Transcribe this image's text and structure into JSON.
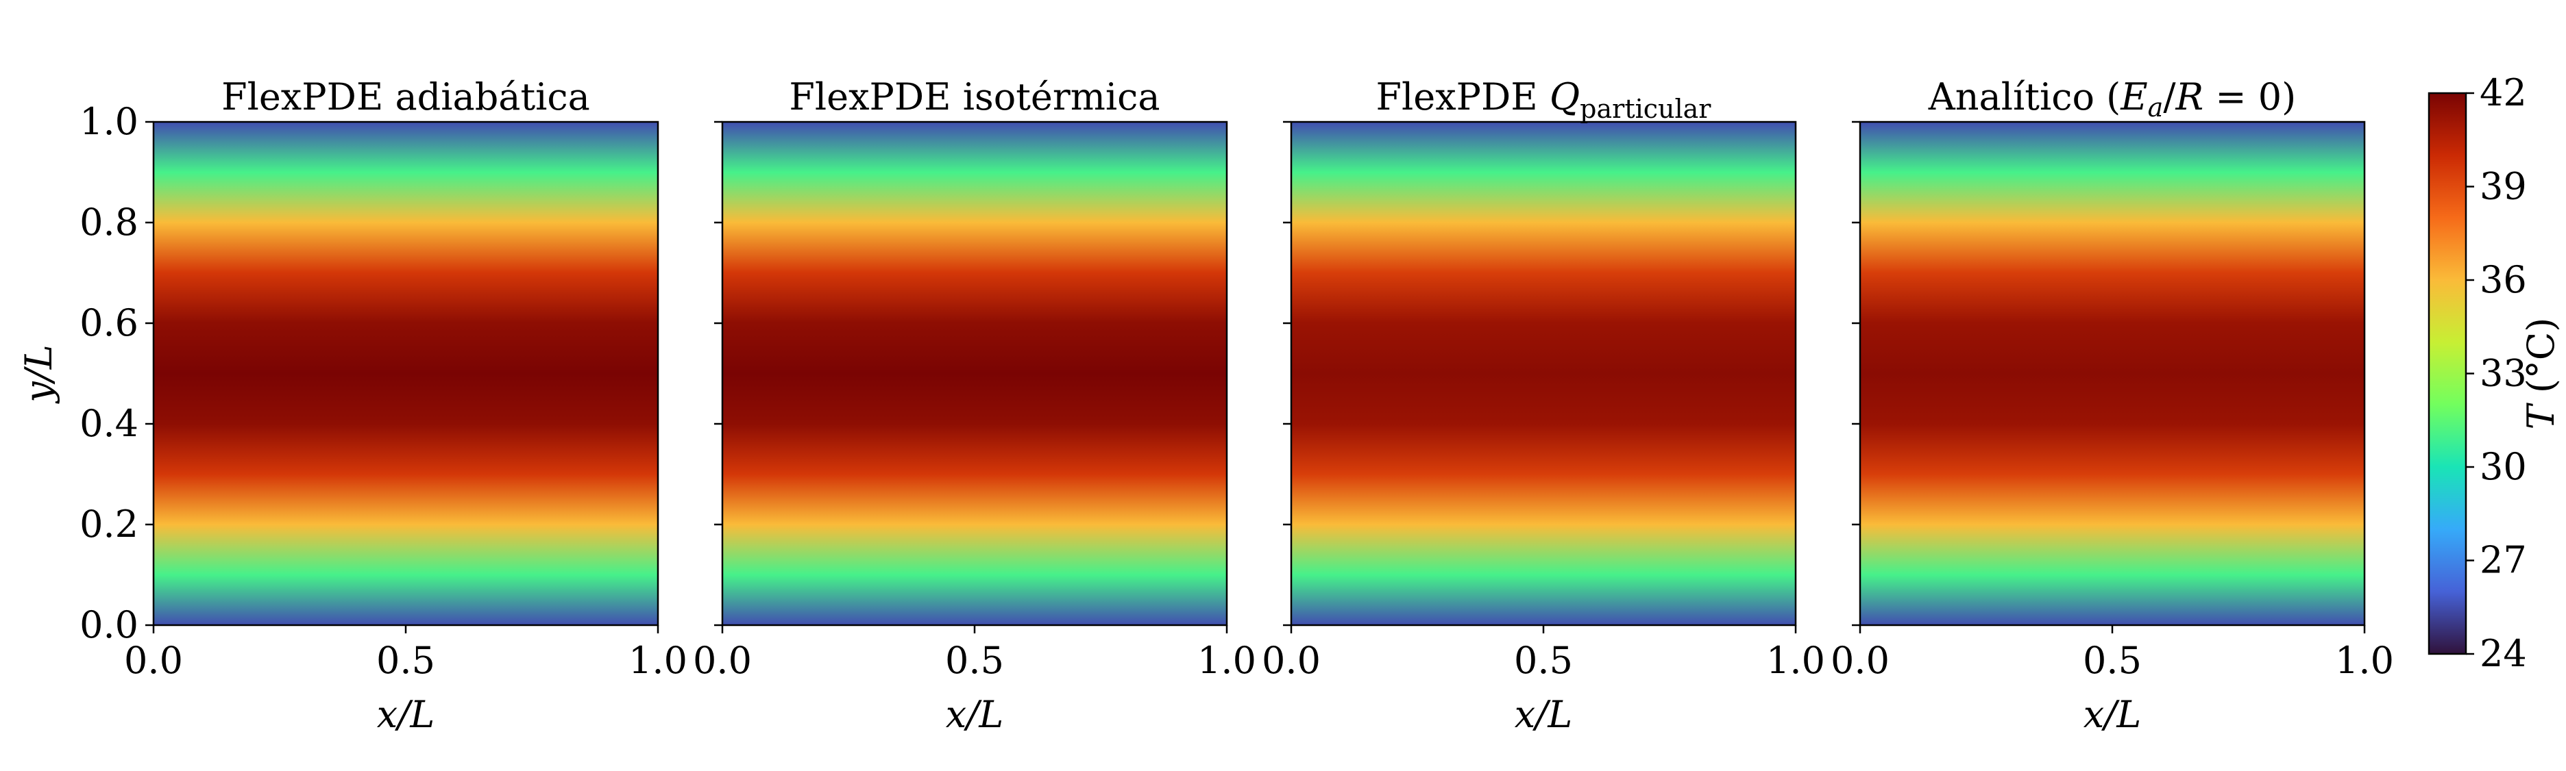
{
  "chart_data": [
    {
      "type": "heatmap",
      "title": "FlexPDE adiabática",
      "title_parts": [
        "FlexPDE adiabática"
      ],
      "xlabel": "x/L",
      "ylabel": "y/L",
      "xlim": [
        0.0,
        1.0
      ],
      "ylim": [
        0.0,
        1.0
      ],
      "xticks": [
        "0.0",
        "0.5",
        "1.0"
      ],
      "yticks": [
        "0.0",
        "0.2",
        "0.4",
        "0.6",
        "0.8",
        "1.0"
      ],
      "field": {
        "y": [
          0.0,
          0.1,
          0.2,
          0.3,
          0.4,
          0.5,
          0.6,
          0.7,
          0.8,
          0.9,
          1.0
        ],
        "T": [
          25.5,
          31.0,
          36.0,
          39.6,
          41.5,
          42.0,
          41.5,
          39.6,
          36.0,
          31.0,
          25.5
        ]
      }
    },
    {
      "type": "heatmap",
      "title": "FlexPDE isotérmica",
      "title_parts": [
        "FlexPDE isotérmica"
      ],
      "xlabel": "x/L",
      "xlim": [
        0.0,
        1.0
      ],
      "ylim": [
        0.0,
        1.0
      ],
      "xticks": [
        "0.0",
        "0.5",
        "1.0"
      ],
      "field": {
        "y": [
          0.0,
          0.1,
          0.2,
          0.3,
          0.4,
          0.5,
          0.6,
          0.7,
          0.8,
          0.9,
          1.0
        ],
        "T": [
          25.5,
          31.0,
          36.0,
          39.6,
          41.5,
          42.0,
          41.5,
          39.6,
          36.0,
          31.0,
          25.5
        ]
      }
    },
    {
      "type": "heatmap",
      "title": "FlexPDE Q particular",
      "title_parts": [
        "FlexPDE ",
        "Q",
        "particular"
      ],
      "xlabel": "x/L",
      "xlim": [
        0.0,
        1.0
      ],
      "ylim": [
        0.0,
        1.0
      ],
      "xticks": [
        "0.0",
        "0.5",
        "1.0"
      ],
      "field": {
        "y": [
          0.0,
          0.1,
          0.2,
          0.3,
          0.4,
          0.5,
          0.6,
          0.7,
          0.8,
          0.9,
          1.0
        ],
        "T": [
          25.5,
          31.0,
          36.0,
          39.4,
          41.2,
          41.6,
          41.2,
          39.4,
          36.0,
          31.0,
          25.5
        ]
      }
    },
    {
      "type": "heatmap",
      "title": "Analítico (Ea/R = 0)",
      "title_parts": [
        "Analítico (",
        "E",
        "a",
        "/",
        "R",
        " = 0)"
      ],
      "xlabel": "x/L",
      "xlim": [
        0.0,
        1.0
      ],
      "ylim": [
        0.0,
        1.0
      ],
      "xticks": [
        "0.0",
        "0.5",
        "1.0"
      ],
      "field": {
        "y": [
          0.0,
          0.1,
          0.2,
          0.3,
          0.4,
          0.5,
          0.6,
          0.7,
          0.8,
          0.9,
          1.0
        ],
        "T": [
          25.5,
          31.0,
          36.0,
          39.4,
          41.2,
          41.6,
          41.2,
          39.4,
          36.0,
          31.0,
          25.5
        ]
      }
    }
  ],
  "colorbar": {
    "label": "T (°C)",
    "label_parts": [
      "T",
      " (°C)"
    ],
    "range": [
      24,
      42
    ],
    "ticks": [
      "24",
      "27",
      "30",
      "33",
      "36",
      "39",
      "42"
    ],
    "colormap": "turbo",
    "colormap_stops": [
      "#30123b",
      "#4662d7",
      "#36aaf9",
      "#1ae4b6",
      "#72fe5e",
      "#c7ef34",
      "#fabb39",
      "#f66b19",
      "#cb2a04",
      "#7a0403"
    ]
  }
}
